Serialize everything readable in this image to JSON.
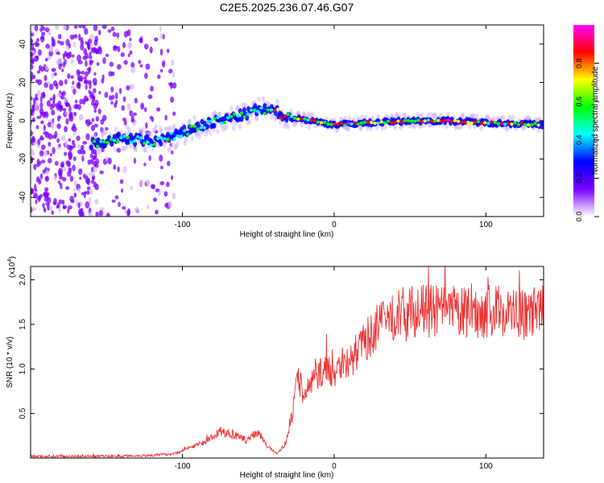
{
  "chart_data": [
    {
      "type": "heatmap",
      "title": "C2E5.2025.236.07.46.G07",
      "xlabel": "Height of straight line (km)",
      "ylabel": "Frequency (Hz)",
      "xlim": [
        -200,
        138
      ],
      "ylim": [
        -50,
        50
      ],
      "xticks": [
        -100,
        0,
        100
      ],
      "xtick_labels": [
        "-100",
        "0",
        "100"
      ],
      "yticks": [
        -40,
        -20,
        0,
        20,
        40
      ],
      "ytick_labels": [
        "-40",
        "-20",
        "0",
        "20",
        "40"
      ],
      "colorbar": {
        "label": "Normalized spectral amplitude",
        "range": [
          0,
          1
        ],
        "ticks": [
          0.0,
          0.2,
          0.4,
          0.6,
          0.8
        ],
        "tick_labels": [
          "0.0",
          "0.2",
          "0.4",
          "0.6",
          "0.8"
        ],
        "colormap": [
          "#ffffff",
          "#7b00ff",
          "#0000ff",
          "#00ffff",
          "#00ff00",
          "#ffff00",
          "#ff0000",
          "#ff00ff"
        ]
      },
      "doppler_track": [
        {
          "x": -155,
          "y": -12
        },
        {
          "x": -140,
          "y": -9
        },
        {
          "x": -120,
          "y": -11
        },
        {
          "x": -105,
          "y": -8
        },
        {
          "x": -90,
          "y": -3
        },
        {
          "x": -75,
          "y": 0
        },
        {
          "x": -60,
          "y": 3
        },
        {
          "x": -50,
          "y": 6
        },
        {
          "x": -40,
          "y": 5
        },
        {
          "x": -30,
          "y": 2
        },
        {
          "x": -15,
          "y": 0
        },
        {
          "x": 0,
          "y": -2
        },
        {
          "x": 25,
          "y": -1
        },
        {
          "x": 50,
          "y": 0
        },
        {
          "x": 75,
          "y": 0
        },
        {
          "x": 100,
          "y": -1
        },
        {
          "x": 138,
          "y": -2
        }
      ],
      "noise_region_x": [
        -200,
        -105
      ]
    },
    {
      "type": "line",
      "xlabel": "Height of straight line (km)",
      "ylabel": "SNR (10 * v/v)",
      "y_scale_label": "(x10",
      "y_scale_exponent": "4",
      "y_scale_suffix": ")",
      "xlim": [
        -200,
        138
      ],
      "ylim": [
        0,
        2.15
      ],
      "xticks": [
        -100,
        0,
        100
      ],
      "xtick_labels": [
        "-100",
        "0",
        "100"
      ],
      "yticks": [
        0.5,
        1.0,
        1.5,
        2.0
      ],
      "ytick_labels": [
        "0.5",
        "1.0",
        "1.5",
        "2.0"
      ],
      "color": "#ee3333",
      "series": [
        {
          "name": "SNR",
          "x": [
            -200,
            -150,
            -120,
            -105,
            -95,
            -85,
            -75,
            -65,
            -58,
            -50,
            -45,
            -38,
            -32,
            -28,
            -24,
            -20,
            -15,
            -10,
            -5,
            0,
            5,
            10,
            15,
            20,
            25,
            30,
            40,
            50,
            60,
            75,
            90,
            110,
            125,
            138
          ],
          "y": [
            0.02,
            0.02,
            0.03,
            0.05,
            0.12,
            0.18,
            0.3,
            0.25,
            0.2,
            0.3,
            0.15,
            0.05,
            0.15,
            0.45,
            0.9,
            0.7,
            0.85,
            0.95,
            1.0,
            0.95,
            1.1,
            1.05,
            1.2,
            1.3,
            1.4,
            1.5,
            1.6,
            1.65,
            1.65,
            1.65,
            1.62,
            1.66,
            1.6,
            1.65
          ]
        }
      ]
    }
  ]
}
